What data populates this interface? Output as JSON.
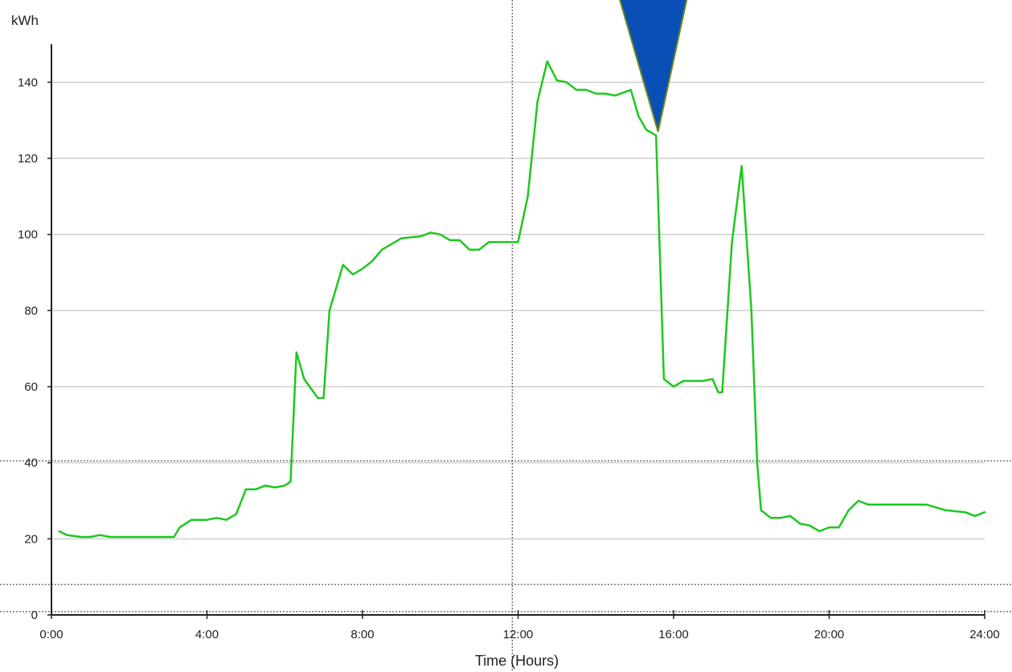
{
  "chart_data": {
    "type": "line",
    "title": "",
    "xlabel": "Time (Hours)",
    "ylabel": "kWh",
    "xlim": [
      0,
      24
    ],
    "ylim": [
      0,
      150
    ],
    "x_ticks": [
      "0:00",
      "4:00",
      "8:00",
      "12:00",
      "16:00",
      "20:00",
      "24:00"
    ],
    "x_tick_values": [
      0,
      4,
      8,
      12,
      16,
      20,
      24
    ],
    "y_ticks": [
      0,
      20,
      40,
      60,
      80,
      100,
      120,
      140
    ],
    "grid": {
      "horizontal": true,
      "vertical": false,
      "dotted_horizontal_levels": [
        0.88,
        40.5,
        8
      ],
      "dotted_vertical_hour": 11.85
    },
    "line_color": "#1ec81e",
    "marker": {
      "shape": "downward-triangle",
      "x": 15.6,
      "y": 127,
      "fill": "#0a4fb5",
      "stroke": "#6a8a1a"
    },
    "series": [
      {
        "x": [
          0.2,
          0.4,
          0.75,
          1.0,
          1.25,
          1.5,
          2.0,
          2.5,
          3.0,
          3.15,
          3.3,
          3.6,
          4.0,
          4.25,
          4.5,
          4.75,
          5.0,
          5.25,
          5.5,
          5.75,
          6.0,
          6.15,
          6.3,
          6.5,
          6.85,
          7.0,
          7.15,
          7.5,
          7.75,
          8.0,
          8.25,
          8.5,
          9.0,
          9.5,
          9.75,
          10.0,
          10.25,
          10.5,
          10.75,
          11.0,
          11.25,
          11.5,
          11.75,
          12.0,
          12.25,
          12.5,
          12.75,
          13.0,
          13.25,
          13.5,
          13.75,
          14.0,
          14.25,
          14.5,
          14.9,
          15.1,
          15.3,
          15.55,
          15.75,
          16.0,
          16.25,
          16.5,
          16.75,
          17.0,
          17.15,
          17.25,
          17.5,
          17.75,
          18.0,
          18.15,
          18.25,
          18.5,
          18.75,
          19.0,
          19.25,
          19.5,
          19.75,
          20.0,
          20.25,
          20.5,
          20.75,
          21.0,
          21.5,
          22.0,
          22.5,
          23.0,
          23.5,
          23.75,
          24.0
        ],
        "values": [
          22,
          21,
          20.5,
          20.5,
          21,
          20.5,
          20.5,
          20.5,
          20.5,
          20.5,
          23,
          25,
          25,
          25.5,
          25,
          26.5,
          33,
          33,
          34,
          33.5,
          34,
          35,
          69,
          62,
          57,
          57,
          80,
          92,
          89.5,
          91,
          93,
          96,
          99,
          99.5,
          100.5,
          100,
          98.5,
          98.5,
          96,
          96,
          98,
          98,
          98,
          98,
          110,
          135,
          145.5,
          140.5,
          140,
          138,
          138,
          137,
          137,
          136.5,
          138,
          131,
          127.5,
          126,
          62,
          60,
          61.5,
          61.5,
          61.5,
          62,
          58.5,
          58.5,
          98,
          118,
          80,
          40,
          27.5,
          25.5,
          25.5,
          26,
          24,
          23.5,
          22,
          23,
          23,
          27.5,
          30,
          29,
          29,
          29,
          29,
          27.5,
          27,
          26,
          27
        ]
      }
    ]
  }
}
